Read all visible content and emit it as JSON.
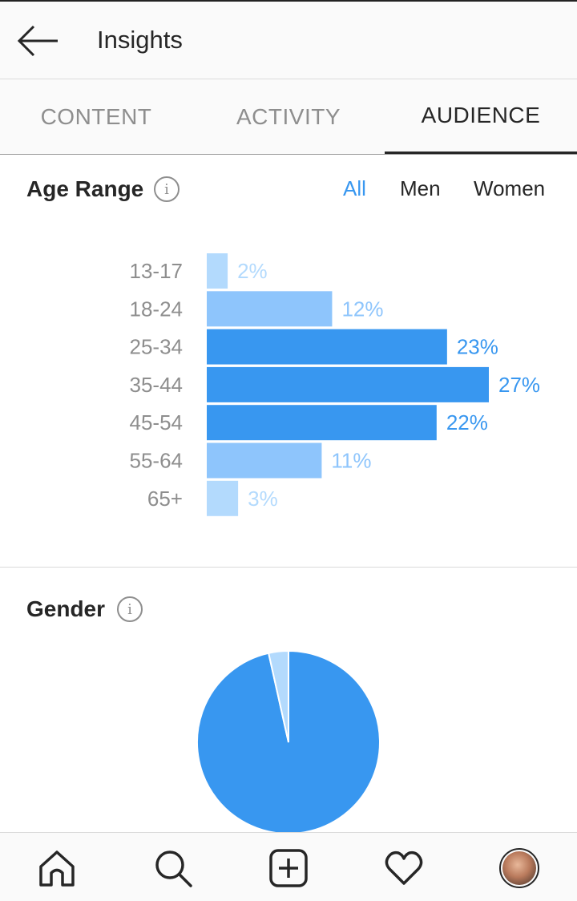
{
  "header": {
    "title": "Insights",
    "back_icon": "arrow-left-icon"
  },
  "tabs": [
    {
      "label": "CONTENT",
      "active": false
    },
    {
      "label": "ACTIVITY",
      "active": false
    },
    {
      "label": "AUDIENCE",
      "active": true
    }
  ],
  "age_range": {
    "title": "Age Range",
    "filters": [
      {
        "label": "All",
        "active": true
      },
      {
        "label": "Men",
        "active": false
      },
      {
        "label": "Women",
        "active": false
      }
    ]
  },
  "gender": {
    "title": "Gender"
  },
  "colors": {
    "accent": "#3897f0",
    "bar_strong": "#3897f0",
    "bar_mid": "#8ec5fc",
    "bar_light": "#b3dafd"
  },
  "chart_data": [
    {
      "type": "bar",
      "orientation": "horizontal",
      "title": "Age Range",
      "categories": [
        "13-17",
        "18-24",
        "25-34",
        "35-44",
        "45-54",
        "55-64",
        "65+"
      ],
      "values": [
        2,
        12,
        23,
        27,
        22,
        11,
        3
      ],
      "value_labels": [
        "2%",
        "12%",
        "23%",
        "27%",
        "22%",
        "11%",
        "3%"
      ],
      "unit": "%"
    },
    {
      "type": "pie",
      "title": "Gender",
      "values": [
        96.5,
        3.5
      ]
    }
  ],
  "bottom_nav": [
    {
      "icon": "home-icon"
    },
    {
      "icon": "search-icon"
    },
    {
      "icon": "add-post-icon"
    },
    {
      "icon": "heart-icon"
    },
    {
      "icon": "profile-avatar"
    }
  ]
}
